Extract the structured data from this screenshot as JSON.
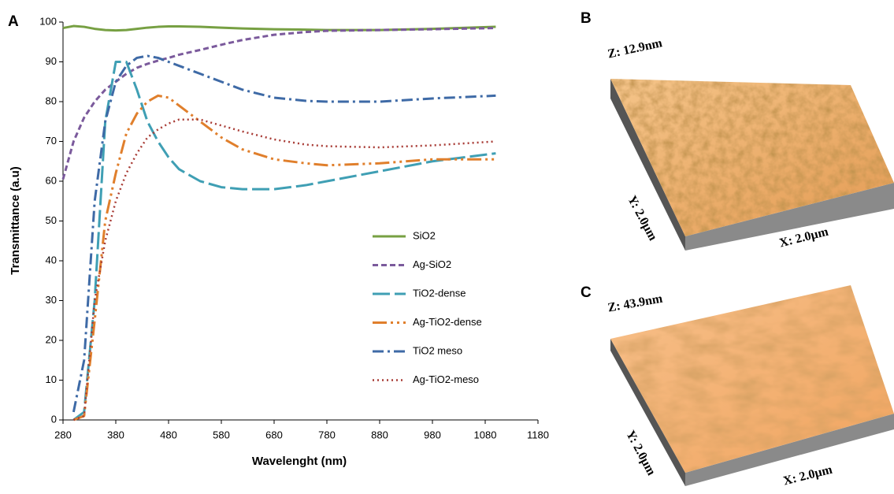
{
  "chart_data": {
    "type": "line",
    "panel_label": "A",
    "x_label": "Wavelenght (nm)",
    "y_label": "Transmittance  (a.u)",
    "x": [
      280,
      300,
      320,
      340,
      360,
      380,
      400,
      420,
      440,
      460,
      480,
      500,
      540,
      580,
      620,
      680,
      740,
      780,
      880,
      980,
      1100
    ],
    "series": [
      {
        "name": "SiO2",
        "color": "#77a043",
        "values": [
          98.5,
          99,
          98.8,
          98.3,
          98,
          97.9,
          98,
          98.3,
          98.6,
          98.8,
          98.9,
          98.9,
          98.8,
          98.6,
          98.4,
          98.2,
          98.1,
          98,
          98,
          98.3,
          98.8
        ]
      },
      {
        "name": "Ag-SiO2",
        "color": "#7b5a9c",
        "values": [
          60.5,
          70,
          76,
          80,
          83,
          85,
          87,
          88.5,
          89.5,
          90.3,
          91,
          91.8,
          93,
          94.3,
          95.5,
          96.8,
          97.5,
          97.8,
          98,
          98.2,
          98.5
        ]
      },
      {
        "name": "TiO2-dense",
        "color": "#3f9fb4",
        "values": [
          null,
          0,
          2,
          30,
          75,
          90,
          90,
          83,
          75,
          70,
          66,
          63,
          60,
          58.5,
          58,
          58,
          59,
          60,
          62.5,
          65,
          67
        ]
      },
      {
        "name": "Ag-TiO2-dense",
        "color": "#e07f2c",
        "values": [
          null,
          0,
          1,
          25,
          50,
          62,
          72,
          77,
          80,
          81.5,
          81,
          79,
          75,
          71,
          68,
          65.5,
          64.5,
          64,
          64.5,
          65.5,
          65.5
        ]
      },
      {
        "name": "TiO2 meso",
        "color": "#3e6aa6",
        "values": [
          null,
          2,
          15,
          55,
          75,
          85,
          89,
          91,
          91.5,
          91,
          90,
          89,
          87,
          85,
          83,
          81,
          80.2,
          80,
          80,
          80.8,
          81.5
        ]
      },
      {
        "name": "Ag-TiO2-meso",
        "color": "#a83b35",
        "values": [
          null,
          0,
          1,
          30,
          45,
          55,
          62,
          67,
          71,
          73,
          74.5,
          75.5,
          75.5,
          74,
          72.5,
          70.5,
          69.2,
          68.8,
          68.5,
          69,
          70
        ]
      }
    ],
    "xlim": [
      280,
      1180
    ],
    "xticks": [
      280,
      380,
      480,
      580,
      680,
      780,
      880,
      980,
      1080,
      1180
    ],
    "ylim": [
      0,
      100
    ],
    "yticks": [
      0,
      10,
      20,
      30,
      40,
      50,
      60,
      70,
      80,
      90,
      100
    ],
    "legend": "right",
    "grid": false
  },
  "afm_panels": [
    {
      "label": "B",
      "z": "Z: 12.9nm",
      "y": "Y: 2.0µm",
      "x": "X: 2.0µm"
    },
    {
      "label": "C",
      "z": "Z: 43.9nm",
      "y": "Y: 2.0µm",
      "x": "X: 2.0µm"
    }
  ]
}
